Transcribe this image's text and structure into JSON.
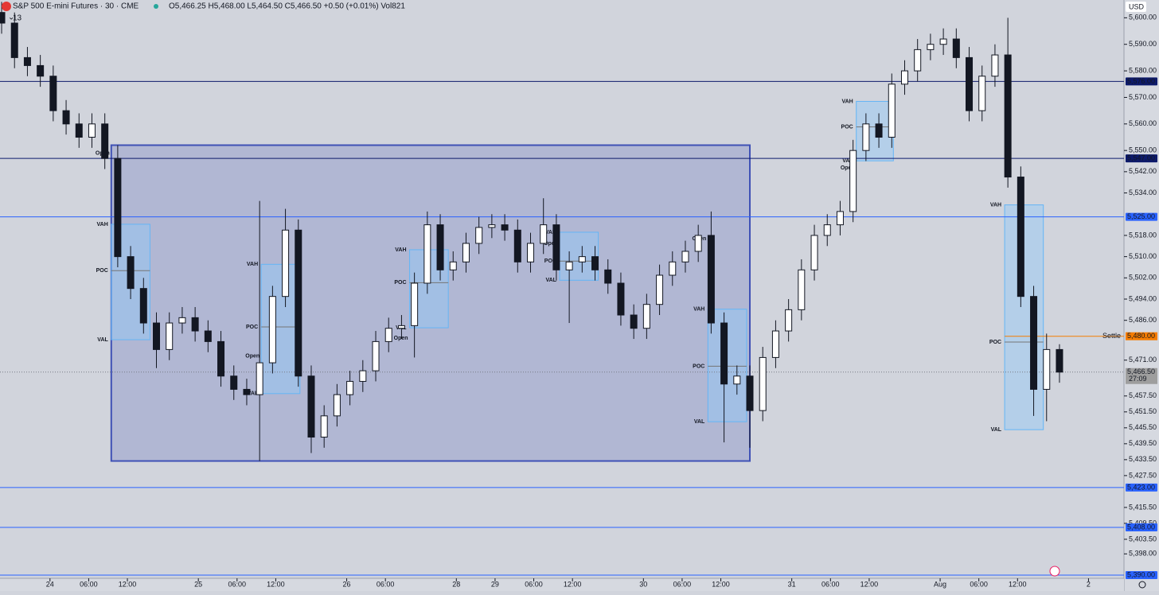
{
  "chart_data": {
    "type": "candlestick",
    "title": "S&P 500 E-mini Futures · 30 · CME",
    "subtitle": "O5,466.25 H5,468.00 L5,464.50 C5,466.50 +0.50 (+0.01%) Vol821",
    "indicator_count": "13",
    "currency": "USD",
    "up_color": "#ffffff",
    "down_color": "#131722",
    "x": [
      0,
      4,
      8,
      12,
      16,
      20,
      24,
      28,
      32,
      36,
      40,
      44,
      48,
      52,
      56,
      60,
      64,
      68,
      72,
      76,
      80,
      84,
      88,
      92,
      96,
      100,
      104,
      108,
      112,
      116,
      120,
      124,
      128,
      132,
      136,
      140,
      144,
      148,
      152,
      156,
      160,
      164,
      168,
      172,
      176,
      180,
      184,
      188,
      192,
      196,
      200,
      204,
      208,
      212,
      216,
      220,
      224,
      228,
      232,
      236,
      240,
      244,
      248,
      252,
      256,
      260,
      264,
      268,
      272,
      276,
      280,
      284,
      288,
      292,
      296,
      300,
      304,
      308,
      312,
      316,
      320,
      324,
      328
    ],
    "open": [
      5602,
      5598,
      5585,
      5582,
      5578,
      5565,
      5560,
      5555,
      5560,
      5547,
      5510,
      5498,
      5485,
      5475,
      5485,
      5487,
      5482,
      5478,
      5465,
      5460,
      5458,
      5470,
      5495,
      5520,
      5465,
      5442,
      5450,
      5458,
      5463,
      5467,
      5478,
      5483,
      5484,
      5500,
      5522,
      5505,
      5508,
      5515,
      5521,
      5522,
      5520,
      5508,
      5515,
      5522,
      5505,
      5508,
      5510,
      5505,
      5500,
      5488,
      5483,
      5492,
      5503,
      5508,
      5512,
      5518,
      5485,
      5462,
      5465,
      5452,
      5472,
      5482,
      5490,
      5505,
      5518,
      5522,
      5527,
      5550,
      5560,
      5555,
      5575,
      5580,
      5588,
      5590,
      5592,
      5585,
      5565,
      5578,
      5586,
      5540,
      5495,
      5460,
      5475
    ],
    "high": [
      5606,
      5602,
      5589,
      5586,
      5582,
      5569,
      5564,
      5564,
      5564,
      5552,
      5514,
      5502,
      5489,
      5489,
      5491,
      5491,
      5486,
      5482,
      5469,
      5464,
      5531,
      5499,
      5528,
      5524,
      5469,
      5454,
      5462,
      5467,
      5471,
      5482,
      5487,
      5488,
      5504,
      5527,
      5526,
      5512,
      5519,
      5525,
      5526,
      5526,
      5524,
      5519,
      5532,
      5526,
      5512,
      5514,
      5514,
      5509,
      5504,
      5492,
      5496,
      5507,
      5512,
      5516,
      5522,
      5527,
      5489,
      5469,
      5469,
      5476,
      5486,
      5494,
      5509,
      5522,
      5526,
      5531,
      5554,
      5564,
      5564,
      5579,
      5584,
      5592,
      5594,
      5596,
      5596,
      5589,
      5582,
      5590,
      5600,
      5544,
      5499,
      5481,
      5477
    ],
    "low": [
      5594,
      5581,
      5578,
      5574,
      5561,
      5556,
      5551,
      5551,
      5543,
      5506,
      5494,
      5481,
      5468,
      5471,
      5481,
      5478,
      5474,
      5461,
      5456,
      5454,
      5433,
      5466,
      5491,
      5461,
      5436,
      5438,
      5446,
      5454,
      5459,
      5463,
      5474,
      5479,
      5472,
      5496,
      5501,
      5501,
      5504,
      5511,
      5517,
      5516,
      5504,
      5504,
      5511,
      5501,
      5485,
      5504,
      5501,
      5496,
      5484,
      5479,
      5479,
      5488,
      5499,
      5504,
      5508,
      5481,
      5440,
      5458,
      5438,
      5448,
      5468,
      5478,
      5486,
      5501,
      5514,
      5518,
      5523,
      5546,
      5551,
      5551,
      5571,
      5576,
      5584,
      5586,
      5581,
      5561,
      5561,
      5574,
      5536,
      5491,
      5450,
      5448,
      5462.5
    ],
    "close": [
      5598,
      5585,
      5582,
      5578,
      5565,
      5560,
      5555,
      5560,
      5547,
      5510,
      5498,
      5485,
      5475,
      5485,
      5487,
      5482,
      5478,
      5465,
      5460,
      5458,
      5470,
      5495,
      5520,
      5465,
      5442,
      5450,
      5458,
      5463,
      5467,
      5478,
      5483,
      5484,
      5500,
      5522,
      5505,
      5508,
      5515,
      5521,
      5522,
      5520,
      5508,
      5515,
      5522,
      5505,
      5508,
      5510,
      5505,
      5500,
      5488,
      5483,
      5492,
      5503,
      5508,
      5512,
      5518,
      5485,
      5462,
      5465,
      5452,
      5472,
      5482,
      5490,
      5505,
      5518,
      5522,
      5527,
      5550,
      5560,
      5555,
      5575,
      5580,
      5588,
      5590,
      5592,
      5585,
      5565,
      5578,
      5586,
      5540,
      5495,
      5460,
      5475,
      5466.5
    ],
    "xlim": [
      -0.5,
      348
    ],
    "xticks": [
      {
        "value": 15,
        "label": "24"
      },
      {
        "value": 27,
        "label": "06:00"
      },
      {
        "value": 39,
        "label": "12:00"
      },
      {
        "value": 61,
        "label": "25"
      },
      {
        "value": 73,
        "label": "06:00"
      },
      {
        "value": 85,
        "label": "12:00"
      },
      {
        "value": 107,
        "label": "26"
      },
      {
        "value": 119,
        "label": "06:00"
      },
      {
        "value": 141,
        "label": "28"
      },
      {
        "value": 153,
        "label": "29"
      },
      {
        "value": 165,
        "label": "06:00"
      },
      {
        "value": 177,
        "label": "12:00"
      },
      {
        "value": 199,
        "label": "30"
      },
      {
        "value": 211,
        "label": "06:00"
      },
      {
        "value": 223,
        "label": "12:00"
      },
      {
        "value": 245,
        "label": "31"
      },
      {
        "value": 257,
        "label": "06:00"
      },
      {
        "value": 269,
        "label": "12:00"
      },
      {
        "value": 291,
        "label": "Aug"
      },
      {
        "value": 303,
        "label": "06:00"
      },
      {
        "value": 315,
        "label": "12:00"
      },
      {
        "value": 337,
        "label": "2"
      }
    ],
    "ylim": [
      5388.8,
      5606.7
    ],
    "yticks": [
      {
        "value": 5600,
        "label": "5,600.00"
      },
      {
        "value": 5590,
        "label": "5,590.00"
      },
      {
        "value": 5580,
        "label": "5,580.00"
      },
      {
        "value": 5570,
        "label": "5,570.00"
      },
      {
        "value": 5560,
        "label": "5,560.00"
      },
      {
        "value": 5550,
        "label": "5,550.00"
      },
      {
        "value": 5542,
        "label": "5,542.00"
      },
      {
        "value": 5534,
        "label": "5,534.00"
      },
      {
        "value": 5518,
        "label": "5,518.00"
      },
      {
        "value": 5510,
        "label": "5,510.00"
      },
      {
        "value": 5502,
        "label": "5,502.00"
      },
      {
        "value": 5494,
        "label": "5,494.00"
      },
      {
        "value": 5486,
        "label": "5,486.00"
      },
      {
        "value": 5471,
        "label": "5,471.00"
      },
      {
        "value": 5457.5,
        "label": "5,457.50"
      },
      {
        "value": 5451.5,
        "label": "5,451.50"
      },
      {
        "value": 5445.5,
        "label": "5,445.50"
      },
      {
        "value": 5439.5,
        "label": "5,439.50"
      },
      {
        "value": 5433.5,
        "label": "5,433.50"
      },
      {
        "value": 5427.5,
        "label": "5,427.50"
      },
      {
        "value": 5415.5,
        "label": "5,415.50"
      },
      {
        "value": 5409.5,
        "label": "5,409.50"
      },
      {
        "value": 5403.5,
        "label": "5,403.50"
      },
      {
        "value": 5398,
        "label": "5,398.00"
      }
    ],
    "levels": [
      {
        "value": 5576,
        "label": "5,576.00",
        "color": "#0d1a6b"
      },
      {
        "value": 5547,
        "label": "5,547.00",
        "color": "#0d1a6b"
      },
      {
        "value": 5525,
        "label": "5,525.00",
        "color": "#2962ff"
      },
      {
        "value": 5423,
        "label": "5,423.00",
        "color": "#2962ff"
      },
      {
        "value": 5408,
        "label": "5,408.00",
        "color": "#2962ff"
      },
      {
        "value": 5390,
        "label": "5,390.00",
        "color": "#2962ff"
      }
    ],
    "settle": {
      "value": 5480,
      "label": "5,480.00",
      "name": "Settle",
      "color": "#f57c00"
    },
    "last_price": {
      "value": 5466.5,
      "label": "5,466.50",
      "countdown": "27:09"
    },
    "rectangle": {
      "x": [
        34,
        232
      ],
      "top": 5552,
      "bottom": 5433,
      "color": "#3f51b5"
    },
    "profile_labels": {
      "vah": "VAH",
      "poc": "POC",
      "val": "VAL",
      "open": "Open"
    },
    "profiles": [
      {
        "x": [
          34,
          46
        ],
        "vah": 5522.2,
        "poc": 5504.7,
        "val": 5478.7,
        "open": 5548.9
      },
      {
        "x": [
          80.5,
          92.5
        ],
        "vah": 5507.1,
        "poc": 5483.5,
        "val": 5458.4,
        "open": 5472.6
      },
      {
        "x": [
          126.5,
          138.5
        ],
        "vah": 5512.6,
        "poc": 5500.2,
        "val": 5483.2,
        "open": 5479.3
      },
      {
        "x": [
          173,
          185
        ],
        "vah": 5519.2,
        "poc": 5508.3,
        "val": 5501.1,
        "open": 5515
      },
      {
        "x": [
          219,
          231
        ],
        "vah": 5490.2,
        "poc": 5468.7,
        "val": 5447.8,
        "open": 5516.8
      },
      {
        "x": [
          265,
          276.5
        ],
        "vah": 5568.5,
        "poc": 5558.9,
        "val": 5546.1,
        "open": 5543.4
      },
      {
        "x": [
          311,
          323
        ],
        "vah": 5529.5,
        "poc": 5477.8,
        "val": 5444.8
      }
    ]
  }
}
